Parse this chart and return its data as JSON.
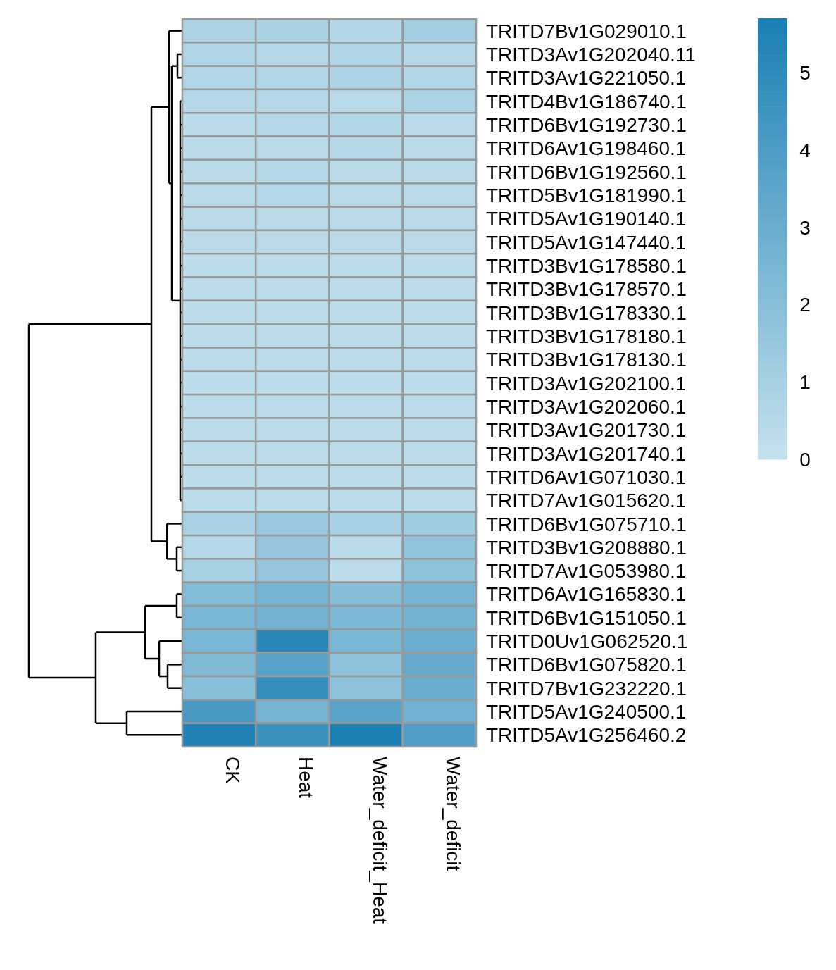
{
  "chart_data": {
    "type": "heatmap",
    "categories": [
      "CK",
      "Heat",
      "Water_deficit_Heat",
      "Water_deficit"
    ],
    "y_categories": [
      "TRITD7Bv1G029010.1",
      "TRITD3Av1G202040.11",
      "TRITD3Av1G221050.1",
      "TRITD4Bv1G186740.1",
      "TRITD6Bv1G192730.1",
      "TRITD6Av1G198460.1",
      "TRITD6Bv1G192560.1",
      "TRITD5Bv1G181990.1",
      "TRITD5Av1G190140.1",
      "TRITD5Av1G147440.1",
      "TRITD3Bv1G178580.1",
      "TRITD3Bv1G178570.1",
      "TRITD3Bv1G178330.1",
      "TRITD3Bv1G178180.1",
      "TRITD3Bv1G178130.1",
      "TRITD3Av1G202100.1",
      "TRITD3Av1G202060.1",
      "TRITD3Av1G201730.1",
      "TRITD3Av1G201740.1",
      "TRITD6Av1G071030.1",
      "TRITD7Av1G015620.1",
      "TRITD6Bv1G075710.1",
      "TRITD3Bv1G208880.1",
      "TRITD7Av1G053980.1",
      "TRITD6Av1G165830.1",
      "TRITD6Bv1G151050.1",
      "TRITD0Uv1G062520.1",
      "TRITD6Bv1G075820.1",
      "TRITD7Bv1G232220.1",
      "TRITD5Av1G240500.1",
      "TRITD5Av1G256460.2"
    ],
    "cells": [
      [
        0.8,
        0.9,
        0.6,
        1.1
      ],
      [
        0.7,
        0.5,
        0.7,
        0.5
      ],
      [
        0.6,
        0.6,
        0.8,
        0.6
      ],
      [
        0.5,
        0.5,
        0.4,
        0.8
      ],
      [
        0.4,
        0.5,
        0.6,
        0.4
      ],
      [
        0.4,
        0.4,
        0.5,
        0.4
      ],
      [
        0.4,
        0.5,
        0.4,
        0.4
      ],
      [
        0.4,
        0.5,
        0.4,
        0.4
      ],
      [
        0.4,
        0.4,
        0.4,
        0.4
      ],
      [
        0.4,
        0.4,
        0.4,
        0.4
      ],
      [
        0.3,
        0.3,
        0.3,
        0.3
      ],
      [
        0.3,
        0.3,
        0.3,
        0.3
      ],
      [
        0.3,
        0.3,
        0.3,
        0.3
      ],
      [
        0.3,
        0.3,
        0.3,
        0.3
      ],
      [
        0.3,
        0.3,
        0.3,
        0.3
      ],
      [
        0.3,
        0.3,
        0.3,
        0.3
      ],
      [
        0.3,
        0.3,
        0.3,
        0.3
      ],
      [
        0.3,
        0.3,
        0.3,
        0.3
      ],
      [
        0.3,
        0.3,
        0.3,
        0.3
      ],
      [
        0.3,
        0.3,
        0.3,
        0.3
      ],
      [
        0.3,
        0.3,
        0.3,
        0.3
      ],
      [
        0.9,
        1.4,
        1.0,
        1.3
      ],
      [
        0.5,
        1.6,
        0.4,
        1.7
      ],
      [
        1.0,
        1.6,
        0.3,
        1.8
      ],
      [
        2.2,
        2.6,
        2.1,
        2.6
      ],
      [
        2.5,
        2.7,
        2.4,
        2.7
      ],
      [
        2.5,
        5.2,
        2.5,
        3.0
      ],
      [
        2.3,
        3.7,
        1.8,
        3.2
      ],
      [
        2.0,
        4.8,
        1.8,
        3.1
      ],
      [
        4.2,
        2.6,
        3.6,
        2.8
      ],
      [
        5.5,
        4.6,
        5.6,
        3.9
      ]
    ],
    "clim": [
      0,
      5.7
    ],
    "cticks": [
      0,
      1,
      2,
      3,
      4,
      5
    ]
  }
}
